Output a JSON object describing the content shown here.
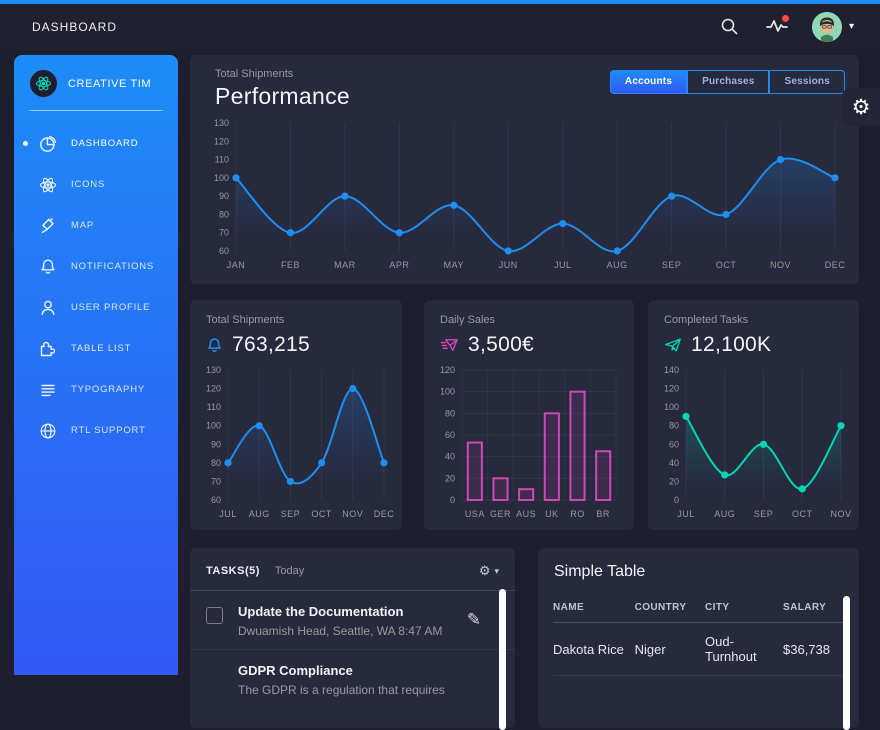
{
  "navbar": {
    "title": "DASHBOARD",
    "icons": {
      "search": "search-icon",
      "activity": "activity-icon",
      "avatar": "user-avatar"
    }
  },
  "sidebar": {
    "brand": "CREATIVE TIM",
    "items": [
      {
        "label": "DASHBOARD",
        "icon": "chart-pie-icon",
        "active": true
      },
      {
        "label": "ICONS",
        "icon": "atom-icon",
        "active": false
      },
      {
        "label": "MAP",
        "icon": "pin-icon",
        "active": false
      },
      {
        "label": "NOTIFICATIONS",
        "icon": "bell-icon",
        "active": false
      },
      {
        "label": "USER PROFILE",
        "icon": "user-icon",
        "active": false
      },
      {
        "label": "TABLE LIST",
        "icon": "puzzle-icon",
        "active": false
      },
      {
        "label": "TYPOGRAPHY",
        "icon": "align-icon",
        "active": false
      },
      {
        "label": "RTL SUPPORT",
        "icon": "globe-icon",
        "active": false
      }
    ]
  },
  "main_chart_card": {
    "subtitle": "Total Shipments",
    "title": "Performance",
    "buttons": [
      "Accounts",
      "Purchases",
      "Sessions"
    ],
    "active_button": "Accounts"
  },
  "stat_cards": [
    {
      "title": "Total Shipments",
      "value": "763,215",
      "icon": "bell-icon",
      "accent": "#1f8ef1"
    },
    {
      "title": "Daily Sales",
      "value": "3,500€",
      "icon": "delivery-fast-icon",
      "accent": "#d048b6"
    },
    {
      "title": "Completed Tasks",
      "value": "12,100K",
      "icon": "send-icon",
      "accent": "#00d6b4"
    }
  ],
  "tasks_card": {
    "title": "TASKS(5)",
    "subtitle": "Today",
    "items": [
      {
        "title": "Update the Documentation",
        "description": "Dwuamish Head, Seattle, WA 8:47 AM",
        "checked": false
      },
      {
        "title": "GDPR Compliance",
        "description": "The GDPR is a regulation that requires",
        "checked": false
      }
    ]
  },
  "table_card": {
    "title": "Simple Table",
    "columns": [
      "NAME",
      "COUNTRY",
      "CITY",
      "SALARY"
    ],
    "rows": [
      [
        "Dakota Rice",
        "Niger",
        "Oud-Turnhout",
        "$36,738"
      ]
    ]
  },
  "glyphs": {
    "gear": "⚙",
    "pencil": "✎",
    "caret": "▾"
  },
  "colors": {
    "background": "#1e1e2f",
    "card": "#27293d",
    "sidebar_top": "#1d8cf8",
    "sidebar_bottom": "#3358f4",
    "accent_blue": "#1f8ef1",
    "accent_pink": "#d048b6",
    "accent_teal": "#00d6b4",
    "muted_text": "#9a9a9a"
  },
  "chart_data": [
    {
      "type": "line",
      "title": "Performance",
      "categories": [
        "JAN",
        "FEB",
        "MAR",
        "APR",
        "MAY",
        "JUN",
        "JUL",
        "AUG",
        "SEP",
        "OCT",
        "NOV",
        "DEC"
      ],
      "values": [
        100,
        70,
        90,
        70,
        85,
        60,
        75,
        60,
        90,
        80,
        110,
        100
      ],
      "ylim": [
        60,
        130
      ],
      "yticks": [
        60,
        70,
        80,
        90,
        100,
        110,
        120,
        130
      ],
      "color": "#1f8ef1",
      "grid": "vertical",
      "legend": "none",
      "xlabel": "",
      "ylabel": ""
    },
    {
      "type": "line",
      "title": "Total Shipments",
      "categories": [
        "JUL",
        "AUG",
        "SEP",
        "OCT",
        "NOV",
        "DEC"
      ],
      "values": [
        80,
        100,
        70,
        80,
        120,
        80
      ],
      "ylim": [
        60,
        130
      ],
      "yticks": [
        60,
        70,
        80,
        90,
        100,
        110,
        120,
        130
      ],
      "color": "#1f8ef1",
      "grid": "vertical",
      "legend": "none",
      "xlabel": "",
      "ylabel": ""
    },
    {
      "type": "bar",
      "title": "Daily Sales",
      "categories": [
        "USA",
        "GER",
        "AUS",
        "UK",
        "RO",
        "BR"
      ],
      "values": [
        53,
        20,
        10,
        80,
        100,
        45
      ],
      "ylim": [
        0,
        120
      ],
      "yticks": [
        0,
        20,
        40,
        60,
        80,
        100,
        120
      ],
      "color": "#d048b6",
      "grid": "both",
      "legend": "none",
      "xlabel": "",
      "ylabel": ""
    },
    {
      "type": "line",
      "title": "Completed Tasks",
      "categories": [
        "JUL",
        "AUG",
        "SEP",
        "OCT",
        "NOV"
      ],
      "values": [
        90,
        27,
        60,
        12,
        80
      ],
      "ylim": [
        0,
        140
      ],
      "yticks": [
        0,
        20,
        40,
        60,
        80,
        100,
        120,
        140
      ],
      "color": "#00d6b4",
      "grid": "vertical",
      "legend": "none",
      "xlabel": "",
      "ylabel": ""
    }
  ]
}
